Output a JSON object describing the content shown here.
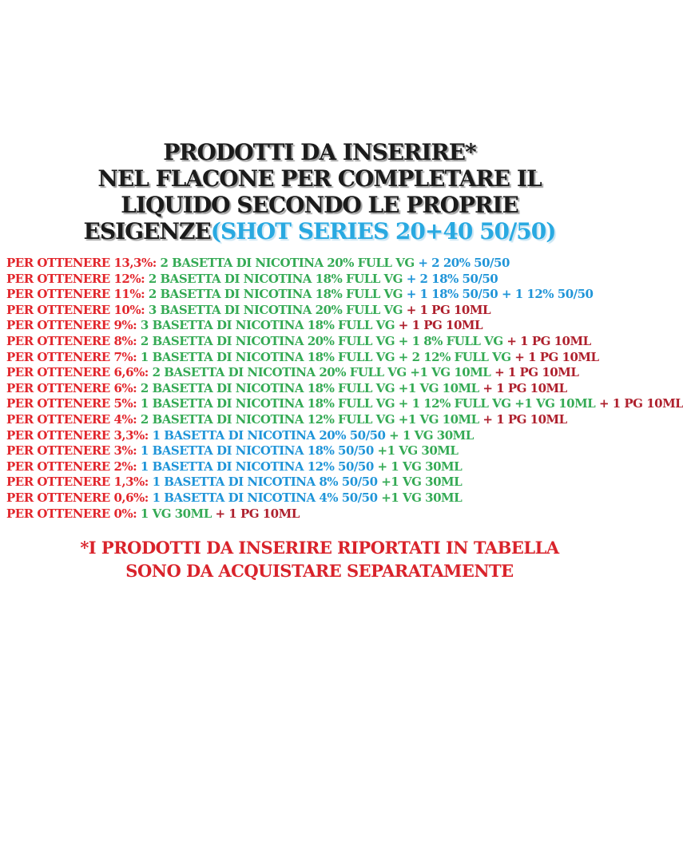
{
  "colors": {
    "title_black": "#1b1b1b",
    "title_blue": "#29a9e1",
    "label_red": "#e2262c",
    "dark_red": "#ae202d",
    "green": "#35aa55",
    "blue": "#2095d8",
    "footer_red": "#d9232b"
  },
  "title": {
    "line1": "PRODOTTI DA INSERIRE*",
    "line2": "NEL FLACONE PER COMPLETARE IL",
    "line3": "LIQUIDO SECONDO LE PROPRIE",
    "line4_black": "ESIGENZE",
    "line4_blue": "(SHOT SERIES 20+40 50/50)"
  },
  "recipes": [
    {
      "segments": [
        {
          "color": "label",
          "text": "PER OTTENERE 13,3%:"
        },
        {
          "color": "green",
          "text": "2 BASETTA DI NICOTINA 20% FULL VG"
        },
        {
          "color": "blue",
          "text": "+ 2 20% 50/50"
        }
      ]
    },
    {
      "segments": [
        {
          "color": "label",
          "text": "PER OTTENERE 12%:"
        },
        {
          "color": "green",
          "text": "2 BASETTA DI NICOTINA 18% FULL VG"
        },
        {
          "color": "blue",
          "text": "+ 2 18% 50/50"
        }
      ]
    },
    {
      "segments": [
        {
          "color": "label",
          "text": "PER OTTENERE 11%:"
        },
        {
          "color": "green",
          "text": "2 BASETTA DI NICOTINA 18% FULL VG"
        },
        {
          "color": "blue",
          "text": "+ 1 18% 50/50 + 1 12% 50/50"
        }
      ]
    },
    {
      "segments": [
        {
          "color": "label",
          "text": "PER OTTENERE 10%:"
        },
        {
          "color": "green",
          "text": "3 BASETTA DI NICOTINA 20% FULL VG"
        },
        {
          "color": "darkred",
          "text": "+ 1 PG 10ML"
        }
      ]
    },
    {
      "segments": [
        {
          "color": "label",
          "text": "PER OTTENERE 9%:"
        },
        {
          "color": "green",
          "text": "3 BASETTA DI NICOTINA 18% FULL VG"
        },
        {
          "color": "darkred",
          "text": "+ 1 PG 10ML"
        }
      ]
    },
    {
      "segments": [
        {
          "color": "label",
          "text": "PER OTTENERE 8%:"
        },
        {
          "color": "green",
          "text": "2 BASETTA DI NICOTINA 20% FULL VG + 1 8% FULL VG"
        },
        {
          "color": "darkred",
          "text": "+ 1 PG 10ML"
        }
      ]
    },
    {
      "segments": [
        {
          "color": "label",
          "text": "PER OTTENERE 7%:"
        },
        {
          "color": "green",
          "text": "1 BASETTA DI NICOTINA 18% FULL VG + 2 12% FULL VG"
        },
        {
          "color": "darkred",
          "text": "+ 1 PG 10ML"
        }
      ]
    },
    {
      "segments": [
        {
          "color": "label",
          "text": "PER OTTENERE 6,6%:"
        },
        {
          "color": "green",
          "text": "2 BASETTA DI NICOTINA 20% FULL VG +1 VG 10ML"
        },
        {
          "color": "darkred",
          "text": "+ 1 PG 10ML"
        }
      ]
    },
    {
      "segments": [
        {
          "color": "label",
          "text": "PER OTTENERE 6%:"
        },
        {
          "color": "green",
          "text": "2 BASETTA DI NICOTINA 18% FULL VG +1 VG 10ML"
        },
        {
          "color": "darkred",
          "text": "+ 1 PG 10ML"
        }
      ]
    },
    {
      "segments": [
        {
          "color": "label",
          "text": "PER OTTENERE 5%:"
        },
        {
          "color": "green",
          "text": "1 BASETTA DI NICOTINA 18% FULL VG + 1 12% FULL VG +1 VG 10ML"
        },
        {
          "color": "darkred",
          "text": "+ 1 PG 10ML"
        }
      ]
    },
    {
      "segments": [
        {
          "color": "label",
          "text": "PER OTTENERE 4%:"
        },
        {
          "color": "green",
          "text": "2 BASETTA DI NICOTINA 12% FULL VG +1 VG 10ML"
        },
        {
          "color": "darkred",
          "text": "+ 1 PG 10ML"
        }
      ]
    },
    {
      "segments": [
        {
          "color": "label",
          "text": "PER OTTENERE 3,3%:"
        },
        {
          "color": "blue",
          "text": "1 BASETTA DI NICOTINA 20% 50/50"
        },
        {
          "color": "green",
          "text": "+ 1 VG 30ML"
        }
      ]
    },
    {
      "segments": [
        {
          "color": "label",
          "text": "PER OTTENERE 3%:"
        },
        {
          "color": "blue",
          "text": "1 BASETTA DI NICOTINA 18% 50/50"
        },
        {
          "color": "green",
          "text": "+1 VG 30ML"
        }
      ]
    },
    {
      "segments": [
        {
          "color": "label",
          "text": "PER OTTENERE 2%:"
        },
        {
          "color": "blue",
          "text": "1 BASETTA DI NICOTINA 12% 50/50"
        },
        {
          "color": "green",
          "text": "+ 1 VG 30ML"
        }
      ]
    },
    {
      "segments": [
        {
          "color": "label",
          "text": "PER OTTENERE 1,3%:"
        },
        {
          "color": "blue",
          "text": "1 BASETTA DI NICOTINA 8% 50/50"
        },
        {
          "color": "green",
          "text": "+1 VG 30ML"
        }
      ]
    },
    {
      "segments": [
        {
          "color": "label",
          "text": "PER OTTENERE 0,6%:"
        },
        {
          "color": "blue",
          "text": "1 BASETTA DI NICOTINA 4% 50/50"
        },
        {
          "color": "green",
          "text": "+1 VG 30ML"
        }
      ]
    },
    {
      "segments": [
        {
          "color": "label",
          "text": "PER OTTENERE 0%:"
        },
        {
          "color": "green",
          "text": "1 VG 30ML"
        },
        {
          "color": "darkred",
          "text": "+ 1 PG 10ML"
        }
      ]
    }
  ],
  "footer": {
    "line1": "*I PRODOTTI DA INSERIRE RIPORTATI IN TABELLA",
    "line2": "SONO DA ACQUISTARE SEPARATAMENTE"
  }
}
